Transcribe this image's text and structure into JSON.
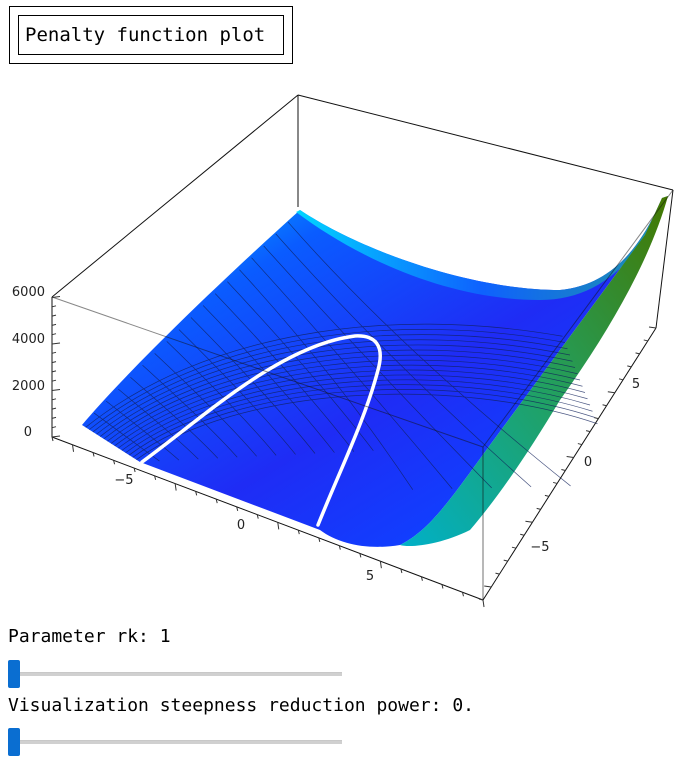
{
  "title_box": {
    "label": "Penalty function plot"
  },
  "plot": {
    "z_ticks": [
      "0",
      "2000",
      "4000",
      "6000"
    ],
    "x_ticks": [
      "−5",
      "0",
      "5"
    ],
    "y_ticks": [
      "−5",
      "0",
      "5"
    ],
    "colors": {
      "low": "#1a1aff",
      "mid": "#00aaff",
      "high": "#339900",
      "curve": "#ffffff"
    },
    "mesh": "dark-grid",
    "surface": "3d-penalty-surface"
  },
  "controls": {
    "rk": {
      "label": "Parameter rk: 1",
      "value": 0
    },
    "steepness": {
      "label": "Visualization steepness reduction power: 0.",
      "value": 0
    }
  }
}
